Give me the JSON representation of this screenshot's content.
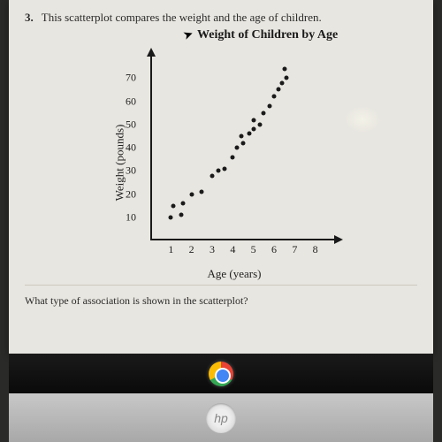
{
  "question": {
    "number": "3.",
    "stem": "This scatterplot compares the weight and the age of children.",
    "sub": "What type of association is shown in the scatterplot?"
  },
  "chart": {
    "type": "scatter",
    "title": "Weight of Children by Age",
    "xlabel": "Age (years)",
    "ylabel": "Weight (pounds)",
    "xlim": [
      0,
      9
    ],
    "ylim": [
      0,
      80
    ],
    "xticks": [
      1,
      2,
      3,
      4,
      5,
      6,
      7,
      8
    ],
    "yticks": [
      10,
      20,
      30,
      40,
      50,
      60,
      70
    ],
    "point_color": "#1a1a1a",
    "point_radius": 2.5,
    "axis_color": "#1a1a1a",
    "background_color": "#e8e6e0",
    "label_fontsize": 13,
    "tick_fontsize": 12,
    "title_fontsize": 14,
    "points": [
      {
        "x": 1.0,
        "y": 10
      },
      {
        "x": 1.5,
        "y": 11
      },
      {
        "x": 1.1,
        "y": 15
      },
      {
        "x": 1.6,
        "y": 16
      },
      {
        "x": 2.0,
        "y": 20
      },
      {
        "x": 2.5,
        "y": 21
      },
      {
        "x": 3.0,
        "y": 28
      },
      {
        "x": 3.3,
        "y": 30
      },
      {
        "x": 3.6,
        "y": 31
      },
      {
        "x": 4.0,
        "y": 36
      },
      {
        "x": 4.2,
        "y": 40
      },
      {
        "x": 4.5,
        "y": 42
      },
      {
        "x": 4.4,
        "y": 45
      },
      {
        "x": 4.8,
        "y": 46
      },
      {
        "x": 5.0,
        "y": 48
      },
      {
        "x": 5.0,
        "y": 52
      },
      {
        "x": 5.3,
        "y": 50
      },
      {
        "x": 5.5,
        "y": 55
      },
      {
        "x": 5.8,
        "y": 58
      },
      {
        "x": 6.0,
        "y": 62
      },
      {
        "x": 6.2,
        "y": 65
      },
      {
        "x": 6.4,
        "y": 68
      },
      {
        "x": 6.6,
        "y": 70
      },
      {
        "x": 6.5,
        "y": 74
      }
    ]
  },
  "device": {
    "logo": "hp"
  }
}
